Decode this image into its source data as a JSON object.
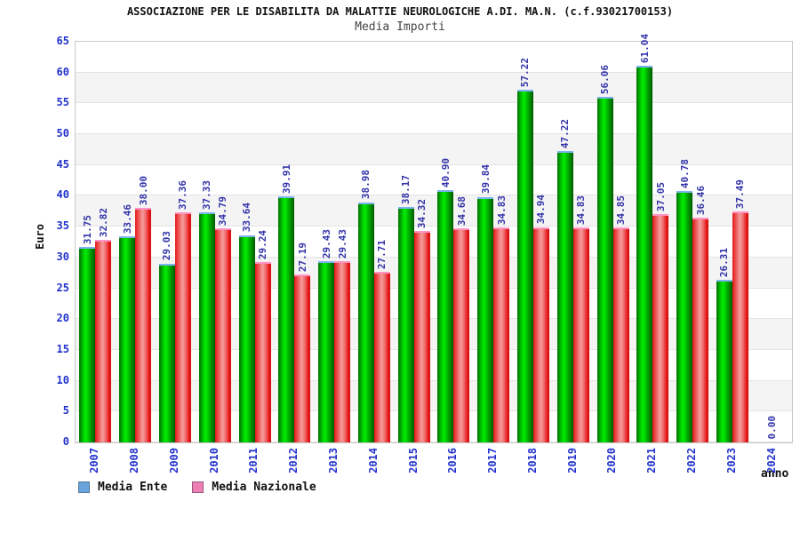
{
  "header": {
    "title": "ASSOCIAZIONE PER LE DISABILITA DA MALATTIE NEUROLOGICHE A.DI. MA.N. (c.f.93021700153)",
    "subtitle": "Media Importi"
  },
  "chart_data": {
    "type": "bar",
    "title": "Media Importi",
    "categories": [
      "2007",
      "2008",
      "2009",
      "2010",
      "2011",
      "2012",
      "2013",
      "2014",
      "2015",
      "2016",
      "2017",
      "2018",
      "2019",
      "2020",
      "2021",
      "2022",
      "2023",
      "2024"
    ],
    "series": [
      {
        "name": "Media Ente",
        "color": "#00ee00",
        "cap_color": "#7fb2f0",
        "legend_swatch_color": "#6ba3dc",
        "values": [
          31.75,
          33.46,
          29.03,
          37.33,
          33.64,
          39.91,
          29.43,
          38.98,
          38.17,
          40.9,
          39.84,
          57.22,
          47.22,
          56.06,
          61.04,
          40.78,
          26.31,
          0.0
        ]
      },
      {
        "name": "Media Nazionale",
        "color": "#ee3333",
        "cap_color": "#ff93c3",
        "legend_swatch_color": "#ee7fb2",
        "values": [
          32.82,
          38.0,
          37.36,
          34.79,
          29.24,
          27.19,
          29.43,
          27.71,
          34.32,
          34.68,
          34.83,
          34.94,
          34.83,
          34.85,
          37.05,
          36.46,
          37.49,
          0.0
        ]
      }
    ],
    "ylabel": "Euro",
    "xlabel": "anno",
    "ylim": [
      0,
      65
    ],
    "ytick_step": 5,
    "value_label_format": "0.00",
    "value_label_color": "#3333aa",
    "axis_label_color": "#2233cc",
    "grid": "horizontal-bands",
    "band_color": "#f4f4f4",
    "legend_position": "bottom-left"
  }
}
